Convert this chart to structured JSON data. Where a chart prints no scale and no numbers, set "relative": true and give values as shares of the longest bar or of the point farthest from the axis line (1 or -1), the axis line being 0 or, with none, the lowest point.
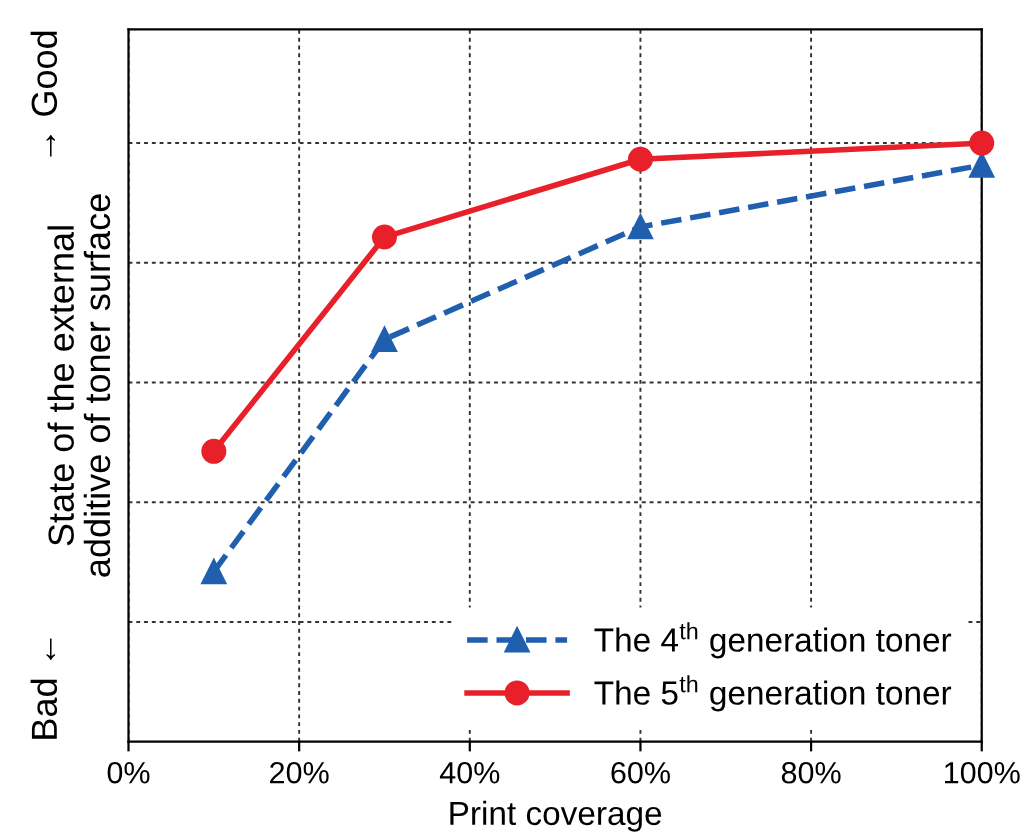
{
  "chart_data": {
    "type": "line",
    "xlabel": "Print coverage",
    "ylabel": "State of the external\nadditive of toner surface",
    "annotations": [
      "Bad ←",
      "→ Good"
    ],
    "x": [
      10,
      30,
      60,
      100
    ],
    "xlim": [
      0,
      100
    ],
    "xticks": [
      {
        "value": 0,
        "label": "0%"
      },
      {
        "value": 20,
        "label": "20%"
      },
      {
        "value": 40,
        "label": "40%"
      },
      {
        "value": 60,
        "label": "60%"
      },
      {
        "value": 80,
        "label": "80%"
      },
      {
        "value": 100,
        "label": "100%"
      }
    ],
    "relative": true,
    "grid": true,
    "legend": "bottom right",
    "series": [
      {
        "name": "The 4$^{th}$ generation toner",
        "color": "#1f5fae",
        "values": [
          0.284,
          0.672,
          0.86,
          0.963
        ],
        "marker": "triangle",
        "line_style": "dashed"
      },
      {
        "name": "The 5$^{th}$ generation toner",
        "color": "#e8202a",
        "values": [
          0.485,
          0.843,
          0.973,
          1
        ],
        "marker": "circle",
        "line_style": "solid"
      }
    ]
  }
}
